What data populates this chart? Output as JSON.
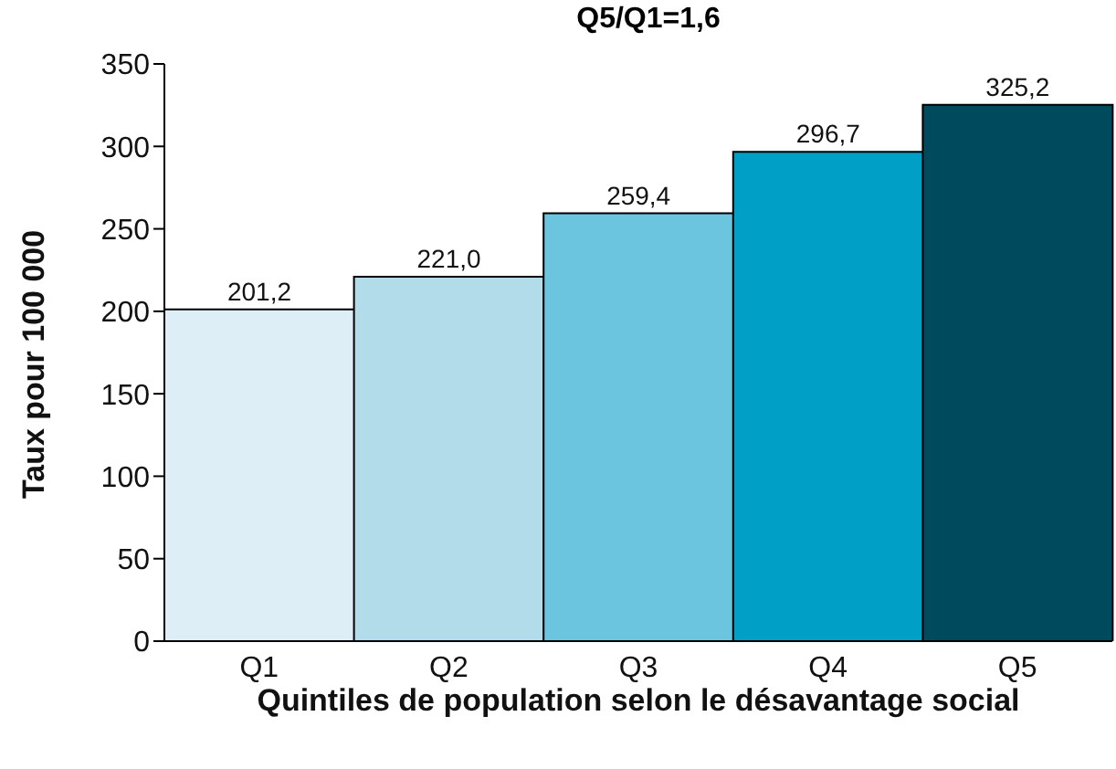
{
  "chart_data": {
    "type": "bar",
    "title": "Q5/Q1=1,6",
    "xlabel": "Quintiles de population selon le désavantage social",
    "ylabel": "Taux pour 100 000",
    "categories": [
      "Q1",
      "Q2",
      "Q3",
      "Q4",
      "Q5"
    ],
    "values": [
      201.2,
      221.0,
      259.4,
      296.7,
      325.2
    ],
    "colors": [
      "#ddeef6",
      "#b3dcea",
      "#6cc5de",
      "#00a0c6",
      "#004a5e"
    ],
    "value_labels": [
      "201,2",
      "221,0",
      "259,4",
      "296,7",
      "325,2"
    ],
    "ylim": [
      0,
      350
    ],
    "yticks": [
      0,
      50,
      100,
      150,
      200,
      250,
      300,
      350
    ],
    "grid": false
  }
}
